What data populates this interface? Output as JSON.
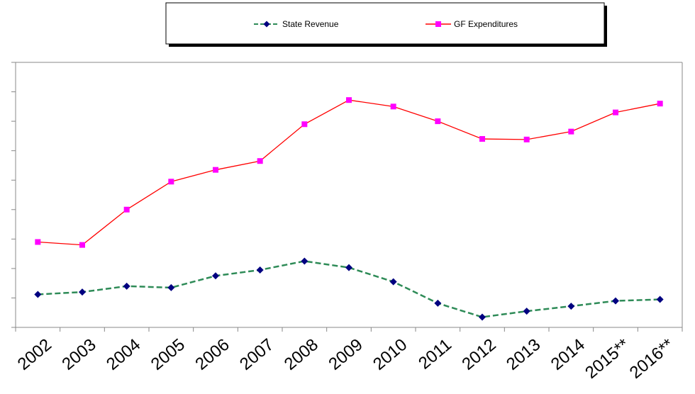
{
  "chart_data": {
    "type": "line",
    "categories": [
      "2002",
      "2003",
      "2004",
      "2005",
      "2006",
      "2007",
      "2008",
      "2009",
      "2010",
      "2011",
      "2012",
      "2013",
      "2014",
      "2015**",
      "2016**"
    ],
    "ylim": [
      0,
      9
    ],
    "ytick_count": 10,
    "y_tick_labels_shown": false,
    "grid": false,
    "legend_position": "top-center",
    "series": [
      {
        "name": "State Revenue",
        "color": "#2e8b57",
        "marker_color": "#000080",
        "marker": "diamond",
        "line_style": "dashed",
        "values": [
          1.12,
          1.2,
          1.4,
          1.35,
          1.75,
          1.95,
          2.25,
          2.03,
          1.55,
          0.82,
          0.35,
          0.55,
          0.72,
          0.9,
          0.95
        ]
      },
      {
        "name": "GF Expenditures",
        "color": "#ff0000",
        "marker_color": "#ff00ff",
        "marker": "square",
        "line_style": "solid",
        "values": [
          2.9,
          2.8,
          4.0,
          4.95,
          5.35,
          5.65,
          6.9,
          7.72,
          7.5,
          7.0,
          6.4,
          6.38,
          6.65,
          7.3,
          7.6
        ]
      }
    ]
  }
}
